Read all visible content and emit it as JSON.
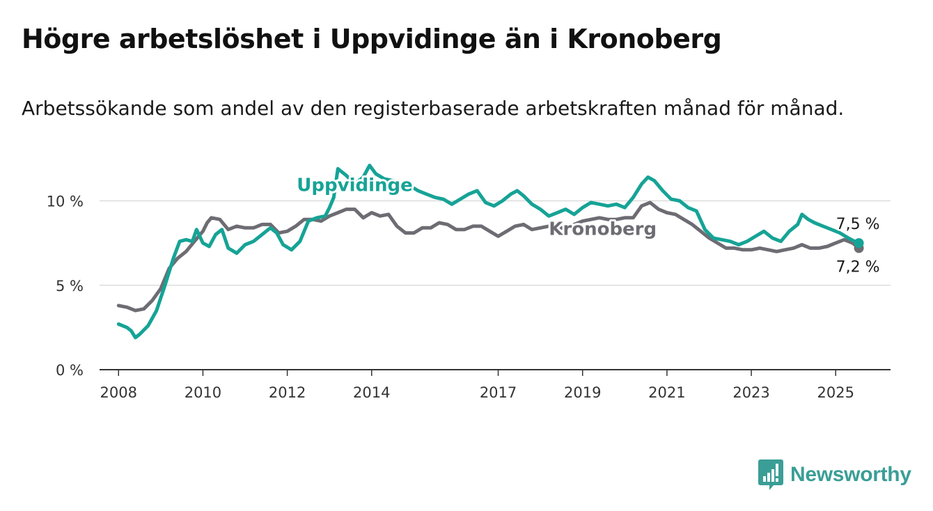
{
  "title": "Högre arbetslöshet i Uppvidinge än i Kronoberg",
  "subtitle": "Arbetssökande som andel av den registerbaserade arbetskraften månad för månad.",
  "brand": {
    "name": "Newsworthy",
    "icon": "bar-chart-icon",
    "color": "#3a9e96"
  },
  "chart_data": {
    "type": "line",
    "title": "Högre arbetslöshet i Uppvidinge än i Kronoberg",
    "subtitle": "Arbetssökande som andel av den registerbaserade arbetskraften månad för månad.",
    "xlabel": "",
    "ylabel": "",
    "xlim": [
      2007.55,
      2026.3
    ],
    "ylim": [
      0,
      12
    ],
    "x_ticks": [
      2008,
      2010,
      2012,
      2014,
      2017,
      2019,
      2021,
      2023,
      2025
    ],
    "x_tick_labels": [
      "2008",
      "2010",
      "2012",
      "2014",
      "2017",
      "2019",
      "2021",
      "2023",
      "2025"
    ],
    "y_ticks": [
      0,
      5,
      10
    ],
    "y_tick_labels": [
      "0 %",
      "5 %",
      "10 %"
    ],
    "grid": "horizontal",
    "legend": "inline labels",
    "series": [
      {
        "name": "Kronoberg",
        "color": "#6e6c73",
        "end_label": "7,2 %",
        "points": [
          [
            2008.0,
            3.8
          ],
          [
            2008.2,
            3.7
          ],
          [
            2008.4,
            3.5
          ],
          [
            2008.6,
            3.6
          ],
          [
            2008.8,
            4.1
          ],
          [
            2009.0,
            4.8
          ],
          [
            2009.2,
            6.0
          ],
          [
            2009.4,
            6.6
          ],
          [
            2009.6,
            7.0
          ],
          [
            2009.8,
            7.6
          ],
          [
            2010.0,
            8.2
          ],
          [
            2010.1,
            8.7
          ],
          [
            2010.2,
            9.0
          ],
          [
            2010.4,
            8.9
          ],
          [
            2010.6,
            8.3
          ],
          [
            2010.8,
            8.5
          ],
          [
            2011.0,
            8.4
          ],
          [
            2011.2,
            8.4
          ],
          [
            2011.4,
            8.6
          ],
          [
            2011.6,
            8.6
          ],
          [
            2011.8,
            8.1
          ],
          [
            2012.0,
            8.2
          ],
          [
            2012.2,
            8.5
          ],
          [
            2012.4,
            8.9
          ],
          [
            2012.6,
            8.9
          ],
          [
            2012.8,
            8.8
          ],
          [
            2013.0,
            9.1
          ],
          [
            2013.2,
            9.3
          ],
          [
            2013.4,
            9.5
          ],
          [
            2013.6,
            9.5
          ],
          [
            2013.8,
            9.0
          ],
          [
            2014.0,
            9.3
          ],
          [
            2014.2,
            9.1
          ],
          [
            2014.4,
            9.2
          ],
          [
            2014.6,
            8.5
          ],
          [
            2014.8,
            8.1
          ],
          [
            2015.0,
            8.1
          ],
          [
            2015.2,
            8.4
          ],
          [
            2015.4,
            8.4
          ],
          [
            2015.6,
            8.7
          ],
          [
            2015.8,
            8.6
          ],
          [
            2016.0,
            8.3
          ],
          [
            2016.2,
            8.3
          ],
          [
            2016.4,
            8.5
          ],
          [
            2016.6,
            8.5
          ],
          [
            2016.8,
            8.2
          ],
          [
            2017.0,
            7.9
          ],
          [
            2017.2,
            8.2
          ],
          [
            2017.4,
            8.5
          ],
          [
            2017.6,
            8.6
          ],
          [
            2017.8,
            8.3
          ],
          [
            2018.0,
            8.4
          ],
          [
            2018.2,
            8.5
          ],
          [
            2018.4,
            8.5
          ],
          [
            2018.6,
            8.3
          ],
          [
            2018.8,
            8.6
          ],
          [
            2019.0,
            8.8
          ],
          [
            2019.2,
            8.9
          ],
          [
            2019.4,
            9.0
          ],
          [
            2019.6,
            8.9
          ],
          [
            2019.8,
            8.9
          ],
          [
            2020.0,
            9.0
          ],
          [
            2020.2,
            9.0
          ],
          [
            2020.4,
            9.7
          ],
          [
            2020.6,
            9.9
          ],
          [
            2020.8,
            9.5
          ],
          [
            2021.0,
            9.3
          ],
          [
            2021.2,
            9.2
          ],
          [
            2021.4,
            8.9
          ],
          [
            2021.6,
            8.6
          ],
          [
            2021.8,
            8.2
          ],
          [
            2022.0,
            7.8
          ],
          [
            2022.2,
            7.5
          ],
          [
            2022.4,
            7.2
          ],
          [
            2022.6,
            7.2
          ],
          [
            2022.8,
            7.1
          ],
          [
            2023.0,
            7.1
          ],
          [
            2023.2,
            7.2
          ],
          [
            2023.4,
            7.1
          ],
          [
            2023.6,
            7.0
          ],
          [
            2023.8,
            7.1
          ],
          [
            2024.0,
            7.2
          ],
          [
            2024.2,
            7.4
          ],
          [
            2024.4,
            7.2
          ],
          [
            2024.6,
            7.2
          ],
          [
            2024.8,
            7.3
          ],
          [
            2025.0,
            7.5
          ],
          [
            2025.2,
            7.7
          ],
          [
            2025.4,
            7.5
          ],
          [
            2025.55,
            7.2
          ]
        ]
      },
      {
        "name": "Uppvidinge",
        "color": "#16a396",
        "end_label": "7,5 %",
        "points": [
          [
            2008.0,
            2.7
          ],
          [
            2008.2,
            2.5
          ],
          [
            2008.3,
            2.3
          ],
          [
            2008.4,
            1.9
          ],
          [
            2008.5,
            2.1
          ],
          [
            2008.7,
            2.6
          ],
          [
            2008.9,
            3.5
          ],
          [
            2009.1,
            5.0
          ],
          [
            2009.3,
            6.6
          ],
          [
            2009.45,
            7.6
          ],
          [
            2009.6,
            7.7
          ],
          [
            2009.75,
            7.6
          ],
          [
            2009.85,
            8.3
          ],
          [
            2010.0,
            7.5
          ],
          [
            2010.15,
            7.3
          ],
          [
            2010.3,
            8.0
          ],
          [
            2010.45,
            8.3
          ],
          [
            2010.6,
            7.2
          ],
          [
            2010.8,
            6.9
          ],
          [
            2011.0,
            7.4
          ],
          [
            2011.2,
            7.6
          ],
          [
            2011.4,
            8.0
          ],
          [
            2011.6,
            8.4
          ],
          [
            2011.75,
            8.1
          ],
          [
            2011.9,
            7.4
          ],
          [
            2012.1,
            7.1
          ],
          [
            2012.3,
            7.6
          ],
          [
            2012.5,
            8.8
          ],
          [
            2012.7,
            9.0
          ],
          [
            2012.9,
            9.1
          ],
          [
            2013.0,
            9.6
          ],
          [
            2013.1,
            10.2
          ],
          [
            2013.2,
            11.9
          ],
          [
            2013.4,
            11.5
          ],
          [
            2013.6,
            11.0
          ],
          [
            2013.8,
            11.4
          ],
          [
            2013.95,
            12.1
          ],
          [
            2014.1,
            11.6
          ],
          [
            2014.3,
            11.3
          ],
          [
            2014.5,
            11.2
          ],
          [
            2014.7,
            11.0
          ],
          [
            2014.9,
            10.9
          ],
          [
            2015.1,
            10.6
          ],
          [
            2015.3,
            10.4
          ],
          [
            2015.5,
            10.2
          ],
          [
            2015.7,
            10.1
          ],
          [
            2015.9,
            9.8
          ],
          [
            2016.1,
            10.1
          ],
          [
            2016.3,
            10.4
          ],
          [
            2016.5,
            10.6
          ],
          [
            2016.7,
            9.9
          ],
          [
            2016.9,
            9.7
          ],
          [
            2017.1,
            10.0
          ],
          [
            2017.3,
            10.4
          ],
          [
            2017.45,
            10.6
          ],
          [
            2017.6,
            10.3
          ],
          [
            2017.8,
            9.8
          ],
          [
            2018.0,
            9.5
          ],
          [
            2018.2,
            9.1
          ],
          [
            2018.4,
            9.3
          ],
          [
            2018.6,
            9.5
          ],
          [
            2018.8,
            9.2
          ],
          [
            2019.0,
            9.6
          ],
          [
            2019.2,
            9.9
          ],
          [
            2019.4,
            9.8
          ],
          [
            2019.6,
            9.7
          ],
          [
            2019.8,
            9.8
          ],
          [
            2020.0,
            9.6
          ],
          [
            2020.2,
            10.2
          ],
          [
            2020.4,
            11.0
          ],
          [
            2020.55,
            11.4
          ],
          [
            2020.7,
            11.2
          ],
          [
            2020.9,
            10.6
          ],
          [
            2021.1,
            10.1
          ],
          [
            2021.3,
            10.0
          ],
          [
            2021.5,
            9.6
          ],
          [
            2021.7,
            9.4
          ],
          [
            2021.9,
            8.3
          ],
          [
            2022.1,
            7.8
          ],
          [
            2022.3,
            7.7
          ],
          [
            2022.5,
            7.6
          ],
          [
            2022.7,
            7.4
          ],
          [
            2022.9,
            7.6
          ],
          [
            2023.1,
            7.9
          ],
          [
            2023.3,
            8.2
          ],
          [
            2023.5,
            7.8
          ],
          [
            2023.7,
            7.6
          ],
          [
            2023.9,
            8.2
          ],
          [
            2024.1,
            8.6
          ],
          [
            2024.2,
            9.2
          ],
          [
            2024.35,
            8.9
          ],
          [
            2024.5,
            8.7
          ],
          [
            2024.7,
            8.5
          ],
          [
            2024.9,
            8.3
          ],
          [
            2025.1,
            8.1
          ],
          [
            2025.3,
            7.8
          ],
          [
            2025.45,
            7.6
          ],
          [
            2025.55,
            7.5
          ]
        ]
      }
    ]
  }
}
